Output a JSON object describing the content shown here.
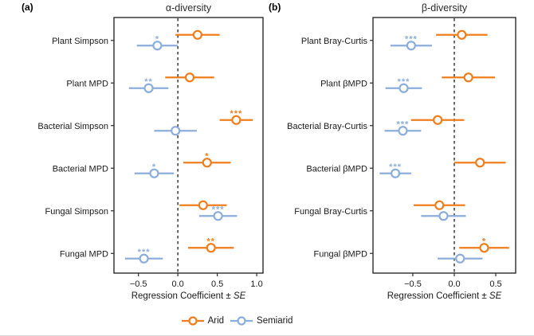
{
  "figure": {
    "legend": [
      {
        "label": "Arid",
        "color": "#F07E1C"
      },
      {
        "label": "Semiarid",
        "color": "#8CAEDC"
      }
    ]
  },
  "chart_data": [
    {
      "type": "forest",
      "panel_label": "(a)",
      "title": "α-diversity",
      "xlabel_main": "Regression Coefficient ± ",
      "xlabel_se": "SE",
      "xlim": [
        -0.81,
        1.08
      ],
      "xticks": [
        -0.5,
        0.0,
        0.5,
        1.0
      ],
      "reference_line": 0,
      "grid": false,
      "categories": [
        "Plant Simpson",
        "Plant MPD",
        "Bacterial Simpson",
        "Bacterial MPD",
        "Fungal Simpson",
        "Fungal MPD"
      ],
      "series": [
        {
          "name": "Arid",
          "color": "#F07E1C",
          "values": [
            0.25,
            0.15,
            0.74,
            0.37,
            0.32,
            0.42
          ],
          "se": [
            0.28,
            0.31,
            0.21,
            0.3,
            0.3,
            0.29
          ],
          "sig": [
            "",
            "",
            "***",
            "*",
            "",
            "**"
          ]
        },
        {
          "name": "Semiarid",
          "color": "#8CAEDC",
          "values": [
            -0.26,
            -0.37,
            -0.03,
            -0.3,
            0.51,
            -0.43
          ],
          "se": [
            0.26,
            0.25,
            0.27,
            0.25,
            0.24,
            0.24
          ],
          "sig": [
            "*",
            "**",
            "",
            "*",
            "***",
            "***"
          ]
        }
      ]
    },
    {
      "type": "forest",
      "panel_label": "(b)",
      "title": "β-diversity",
      "xlabel_main": "Regression Coefficient ± ",
      "xlabel_se": "SE",
      "xlim": [
        -0.98,
        0.74
      ],
      "xticks": [
        -0.5,
        0.0,
        0.5
      ],
      "reference_line": 0,
      "grid": false,
      "categories": [
        "Plant Bray-Curtis",
        "Plant βMPD",
        "Bacterial Bray-Curtis",
        "Bacterial βMPD",
        "Fungal Bray-Curtis",
        "Fungal βMPD"
      ],
      "series": [
        {
          "name": "Arid",
          "color": "#F07E1C",
          "values": [
            0.09,
            0.17,
            -0.2,
            0.31,
            -0.18,
            0.36
          ],
          "se": [
            0.31,
            0.32,
            0.32,
            0.31,
            0.31,
            0.3
          ],
          "sig": [
            "",
            "",
            "",
            "",
            "",
            "*"
          ]
        },
        {
          "name": "Semiarid",
          "color": "#8CAEDC",
          "values": [
            -0.52,
            -0.61,
            -0.62,
            -0.71,
            -0.13,
            0.07
          ],
          "se": [
            0.25,
            0.22,
            0.22,
            0.19,
            0.27,
            0.27
          ],
          "sig": [
            "***",
            "***",
            "***",
            "***",
            "",
            ""
          ]
        }
      ]
    }
  ]
}
